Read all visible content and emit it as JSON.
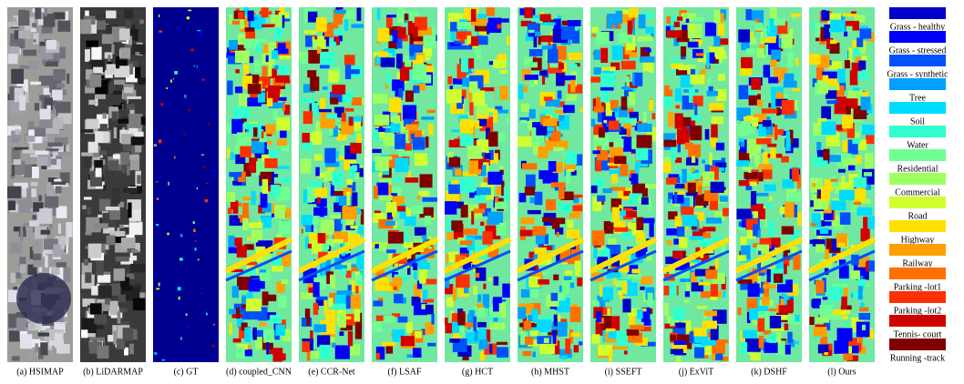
{
  "panels": [
    {
      "caption": "(a) HSIMAP",
      "style": "rgb"
    },
    {
      "caption": "(b) LiDARMAP",
      "style": "gray"
    },
    {
      "caption": "(c) GT",
      "style": "gt"
    },
    {
      "caption": "(d) coupled_CNN",
      "style": "map"
    },
    {
      "caption": "(e) CCR-Net",
      "style": "map"
    },
    {
      "caption": "(f) LSAF",
      "style": "map"
    },
    {
      "caption": "(g) HCT",
      "style": "map"
    },
    {
      "caption": "(h) MHST",
      "style": "map"
    },
    {
      "caption": "(i) SSEFT",
      "style": "map"
    },
    {
      "caption": "(j) ExViT",
      "style": "map"
    },
    {
      "caption": "(k) DSHF",
      "style": "map"
    },
    {
      "caption": "(l) Ours",
      "style": "map"
    }
  ],
  "legend": [
    {
      "label": "Grass - healthy",
      "color": "#0000c8"
    },
    {
      "label": "Grass - stressed",
      "color": "#0000ff"
    },
    {
      "label": "Grass - synthetic",
      "color": "#0050ff"
    },
    {
      "label": "Tree",
      "color": "#00a0ff"
    },
    {
      "label": "Soil",
      "color": "#00dcff"
    },
    {
      "label": "Water",
      "color": "#30ffd0"
    },
    {
      "label": "Residential",
      "color": "#70ff90"
    },
    {
      "label": "Commercial",
      "color": "#a0ff60"
    },
    {
      "label": "Road",
      "color": "#d0ff30"
    },
    {
      "label": "Highway",
      "color": "#ffe000"
    },
    {
      "label": "Railway",
      "color": "#ffa000"
    },
    {
      "label": "Parking -lot1",
      "color": "#ff7000"
    },
    {
      "label": "Parking -lot2",
      "color": "#ff3000"
    },
    {
      "label": "Tennis- court",
      "color": "#d00000"
    },
    {
      "label": "Running -track",
      "color": "#800000"
    }
  ]
}
